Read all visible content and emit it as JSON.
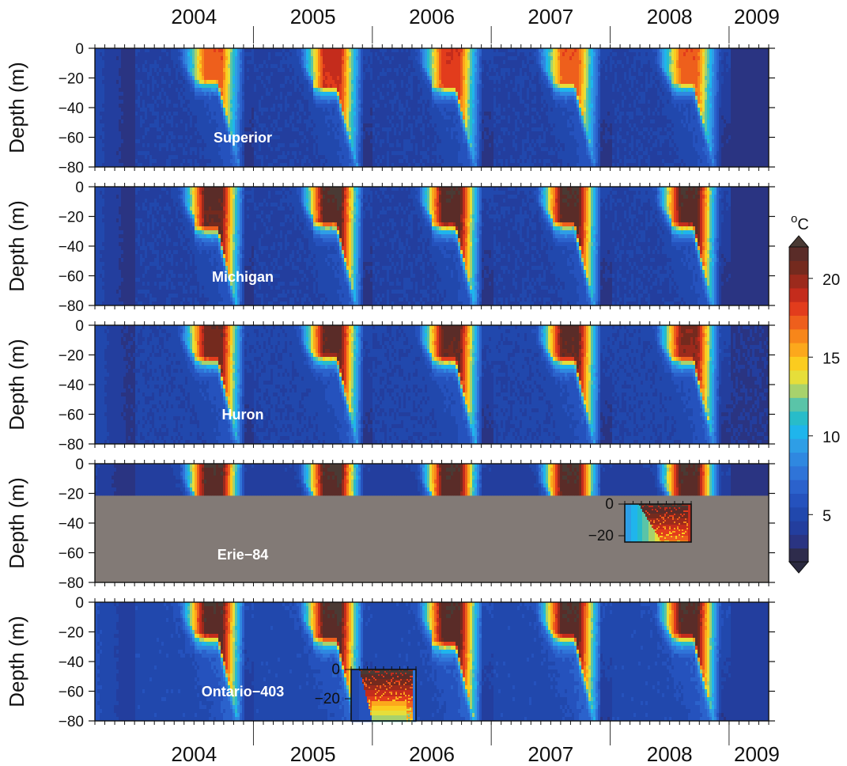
{
  "chart_data": {
    "type": "heatmap",
    "x_axis": {
      "type": "time",
      "range": [
        "2003-09-01",
        "2009-05-01"
      ],
      "top_tick_labels": [
        "2004",
        "2005",
        "2006",
        "2007",
        "2008",
        "2009"
      ],
      "bottom_tick_labels": [
        "2004",
        "2005",
        "2006",
        "2007",
        "2008",
        "2009"
      ]
    },
    "y_axis": {
      "label": "Depth (m)",
      "range": [
        -80,
        0
      ],
      "ticks": [
        0,
        -20,
        -40,
        -60,
        -80
      ],
      "tick_labels": [
        "0",
        "−20",
        "−40",
        "−60",
        "−80"
      ]
    },
    "colorbar": {
      "unit": "oC",
      "range": [
        2,
        22
      ],
      "ticks": [
        5,
        10,
        15,
        20
      ],
      "extend": "both",
      "colors": [
        "#2e2c4c",
        "#2a3482",
        "#233e9e",
        "#2148ad",
        "#2552bd",
        "#2b62cc",
        "#2f74d8",
        "#2f88e0",
        "#2e9ee6",
        "#1fb5ec",
        "#28bcc9",
        "#5ac4a8",
        "#a8d26c",
        "#e6de3a",
        "#fbcc1f",
        "#fca81c",
        "#f7861a",
        "#ee5f1c",
        "#e23c1c",
        "#c42c1c",
        "#9c2a1c",
        "#742a1e",
        "#5a2c28"
      ],
      "over_color": "#4a3a34",
      "under_color": "#2b2a40"
    },
    "panels": [
      {
        "name": "Superior",
        "surface_peak_c": [
          17.5,
          19.0,
          18.5,
          17.5,
          17.5
        ],
        "thermocline_depth_m": [
          20,
          24,
          24,
          22,
          22
        ],
        "winter_c": 3.3
      },
      {
        "name": "Michigan",
        "surface_peak_c": [
          21.5,
          22.0,
          22.0,
          22.0,
          22.0
        ],
        "thermocline_depth_m": [
          25,
          22,
          23,
          22,
          23
        ],
        "winter_c": 3.3
      },
      {
        "name": "Huron",
        "surface_peak_c": [
          21.0,
          21.5,
          21.5,
          21.5,
          20.5
        ],
        "thermocline_depth_m": [
          20,
          18,
          20,
          20,
          20
        ],
        "winter_c": 3.5
      },
      {
        "name": "Erie−84",
        "surface_peak_c": [
          22.0,
          22.0,
          22.0,
          22.0,
          22.0
        ],
        "thermocline_depth_m": [
          21,
          21,
          21,
          21,
          21
        ],
        "max_depth_m": 21,
        "winter_c": 3.0,
        "inset": {
          "tick_labels": [
            "0",
            "−20"
          ],
          "y_range": [
            -25,
            0
          ]
        }
      },
      {
        "name": "Ontario−403",
        "surface_peak_c": [
          22.0,
          22.0,
          22.0,
          22.0,
          22.0
        ],
        "thermocline_depth_m": [
          20,
          22,
          25,
          20,
          20
        ],
        "winter_c": 4.0,
        "inset": {
          "tick_labels": [
            "0",
            "−20"
          ],
          "y_range": [
            -25,
            0
          ]
        }
      }
    ]
  }
}
